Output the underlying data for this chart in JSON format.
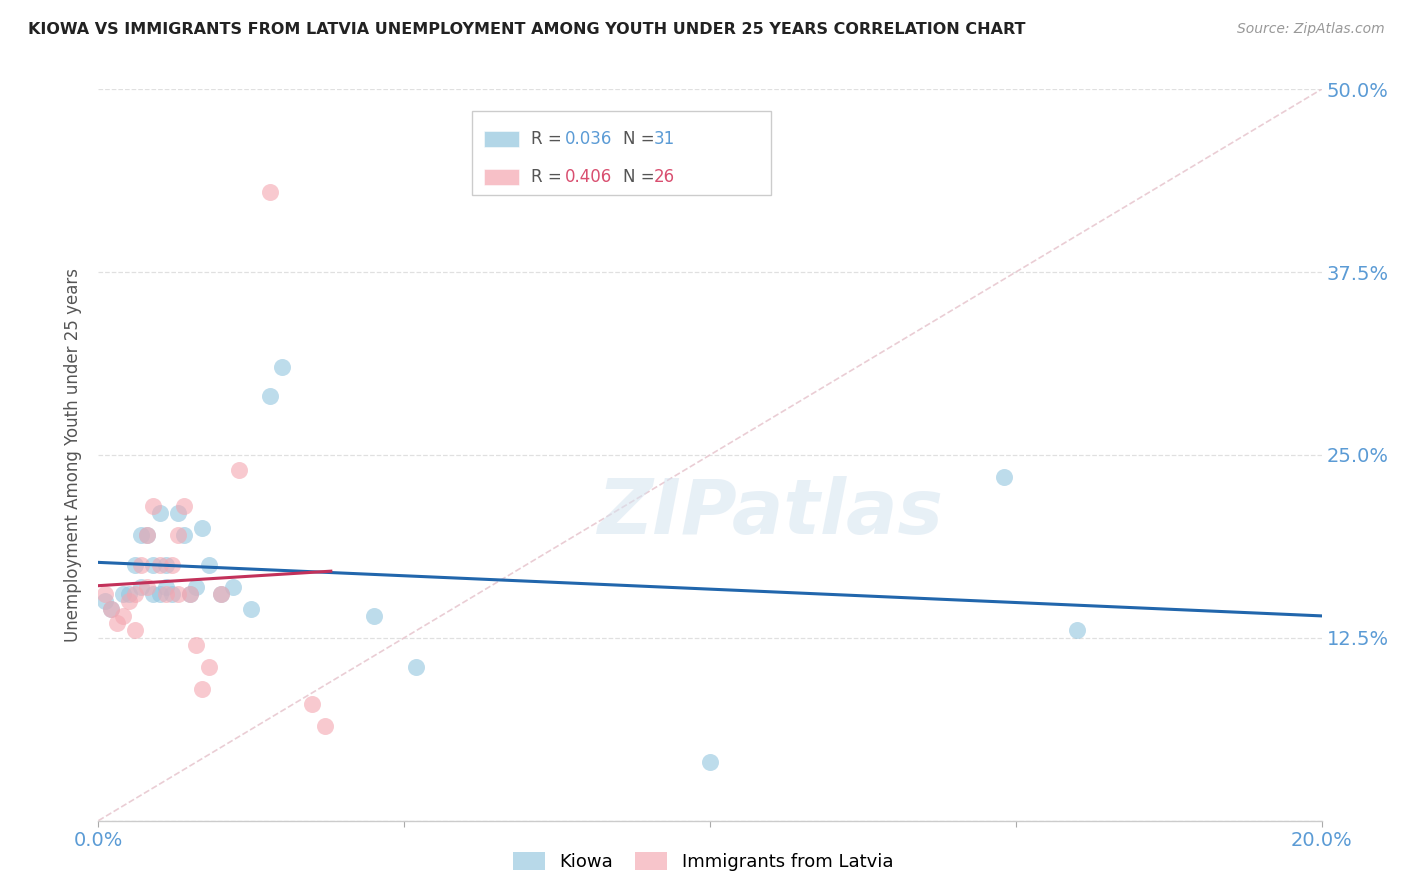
{
  "title": "KIOWA VS IMMIGRANTS FROM LATVIA UNEMPLOYMENT AMONG YOUTH UNDER 25 YEARS CORRELATION CHART",
  "source": "Source: ZipAtlas.com",
  "ylabel": "Unemployment Among Youth under 25 years",
  "xlabel_kiowa": "Kiowa",
  "xlabel_latvia": "Immigrants from Latvia",
  "xlim": [
    0.0,
    0.2
  ],
  "ylim": [
    0.0,
    0.5
  ],
  "xticks": [
    0.0,
    0.05,
    0.1,
    0.15,
    0.2
  ],
  "xtick_labels": [
    "0.0%",
    "",
    "",
    "",
    "20.0%"
  ],
  "yticks": [
    0.0,
    0.125,
    0.25,
    0.375,
    0.5
  ],
  "ytick_labels_right": [
    "",
    "12.5%",
    "25.0%",
    "37.5%",
    "50.0%"
  ],
  "kiowa_R": 0.036,
  "kiowa_N": 31,
  "latvia_R": 0.406,
  "latvia_N": 26,
  "kiowa_color": "#92c5de",
  "latvia_color": "#f4a6b0",
  "kiowa_line_color": "#2166ac",
  "latvia_line_color": "#c2315a",
  "diagonal_color": "#e8c8d0",
  "watermark": "ZIPatlas",
  "kiowa_points_x": [
    0.001,
    0.002,
    0.004,
    0.005,
    0.006,
    0.007,
    0.007,
    0.008,
    0.009,
    0.009,
    0.01,
    0.01,
    0.011,
    0.011,
    0.012,
    0.013,
    0.014,
    0.015,
    0.016,
    0.017,
    0.018,
    0.02,
    0.022,
    0.025,
    0.028,
    0.03,
    0.045,
    0.052,
    0.1,
    0.148,
    0.16
  ],
  "kiowa_points_y": [
    0.15,
    0.145,
    0.155,
    0.155,
    0.175,
    0.16,
    0.195,
    0.195,
    0.155,
    0.175,
    0.21,
    0.155,
    0.16,
    0.175,
    0.155,
    0.21,
    0.195,
    0.155,
    0.16,
    0.2,
    0.175,
    0.155,
    0.16,
    0.145,
    0.29,
    0.31,
    0.14,
    0.105,
    0.04,
    0.235,
    0.13
  ],
  "latvia_points_x": [
    0.001,
    0.002,
    0.003,
    0.004,
    0.005,
    0.006,
    0.006,
    0.007,
    0.008,
    0.008,
    0.009,
    0.01,
    0.011,
    0.012,
    0.013,
    0.013,
    0.014,
    0.015,
    0.016,
    0.017,
    0.018,
    0.02,
    0.023,
    0.028,
    0.035,
    0.037
  ],
  "latvia_points_y": [
    0.155,
    0.145,
    0.135,
    0.14,
    0.15,
    0.155,
    0.13,
    0.175,
    0.16,
    0.195,
    0.215,
    0.175,
    0.155,
    0.175,
    0.155,
    0.195,
    0.215,
    0.155,
    0.12,
    0.09,
    0.105,
    0.155,
    0.24,
    0.43,
    0.08,
    0.065
  ],
  "background_color": "#ffffff",
  "grid_color": "#e0e0e0"
}
